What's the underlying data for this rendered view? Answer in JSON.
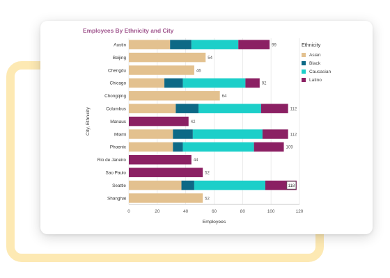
{
  "chart_data": {
    "type": "bar",
    "orientation": "horizontal",
    "stacked": true,
    "title": "Employees By Ethnicity and City",
    "xlabel": "Employees",
    "ylabel": "City, Ethnicity",
    "xlim": [
      0,
      120
    ],
    "xticks": [
      "0",
      "20",
      "40",
      "60",
      "80",
      "100",
      "120"
    ],
    "grid": true,
    "legend_position": "right",
    "legend_title": "Ethnicity",
    "categories": [
      "Austin",
      "Beijing",
      "Chengdu",
      "Chicago",
      "Chongqing",
      "Columbus",
      "Manaus",
      "Miami",
      "Phoenix",
      "Rio de Janeiro",
      "Sao Paulo",
      "Seattle",
      "Shanghai"
    ],
    "series": [
      {
        "name": "Asian",
        "color": "#e3c18f",
        "values": [
          29,
          54,
          46,
          25,
          64,
          33,
          0,
          31,
          31,
          0,
          0,
          37,
          52
        ]
      },
      {
        "name": "Black",
        "color": "#0d6986",
        "values": [
          15,
          0,
          0,
          13,
          0,
          16,
          0,
          14,
          7,
          0,
          0,
          9,
          0
        ]
      },
      {
        "name": "Caucasian",
        "color": "#1ccfc9",
        "values": [
          33,
          0,
          0,
          44,
          0,
          44,
          0,
          49,
          50,
          0,
          0,
          50,
          0
        ]
      },
      {
        "name": "Latino",
        "color": "#8b2063",
        "values": [
          22,
          0,
          0,
          10,
          0,
          19,
          42,
          18,
          21,
          44,
          52,
          22,
          0
        ]
      }
    ],
    "totals": [
      99,
      54,
      46,
      92,
      64,
      112,
      42,
      112,
      109,
      44,
      52,
      118,
      52
    ]
  }
}
